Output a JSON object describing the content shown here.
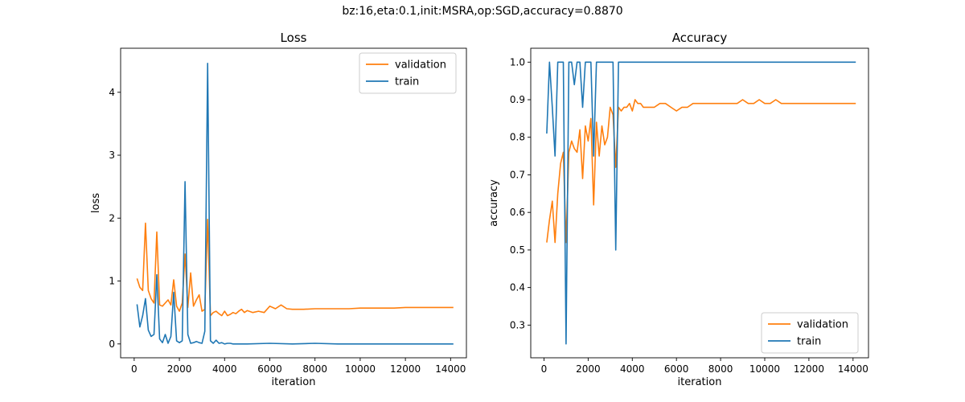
{
  "suptitle": "bz:16,eta:0.1,init:MSRA,op:SGD,accuracy=0.8870",
  "colors": {
    "validation": "#ff7f0e",
    "train": "#1f77b4"
  },
  "chart_data": [
    {
      "type": "line",
      "title": "Loss",
      "xlabel": "iteration",
      "ylabel": "loss",
      "xlim": [
        -600,
        14700
      ],
      "ylim": [
        -0.22,
        4.7
      ],
      "xticks": [
        0,
        2000,
        4000,
        6000,
        8000,
        10000,
        12000,
        14000
      ],
      "yticks": [
        0,
        1,
        2,
        3,
        4
      ],
      "legend": "top-right",
      "series": [
        {
          "name": "validation",
          "color": "#ff7f0e",
          "x": [
            125,
            250,
            375,
            500,
            625,
            750,
            875,
            1000,
            1125,
            1250,
            1375,
            1500,
            1625,
            1750,
            1875,
            2000,
            2125,
            2250,
            2375,
            2500,
            2625,
            2750,
            2875,
            3000,
            3125,
            3250,
            3375,
            3500,
            3625,
            3750,
            3875,
            4000,
            4125,
            4250,
            4375,
            4500,
            4625,
            4750,
            4875,
            5000,
            5250,
            5500,
            5750,
            6000,
            6250,
            6500,
            6750,
            7000,
            7500,
            8000,
            8500,
            9000,
            9500,
            10000,
            10500,
            11000,
            11500,
            12000,
            12500,
            13000,
            13500,
            14000,
            14125
          ],
          "values": [
            1.04,
            0.9,
            0.85,
            1.92,
            0.85,
            0.72,
            0.65,
            1.78,
            0.62,
            0.6,
            0.65,
            0.7,
            0.62,
            1.02,
            0.6,
            0.52,
            0.65,
            1.43,
            0.58,
            1.13,
            0.6,
            0.7,
            0.78,
            0.52,
            0.55,
            1.98,
            0.45,
            0.5,
            0.52,
            0.48,
            0.45,
            0.52,
            0.45,
            0.47,
            0.5,
            0.48,
            0.52,
            0.55,
            0.5,
            0.53,
            0.5,
            0.52,
            0.5,
            0.6,
            0.56,
            0.62,
            0.56,
            0.55,
            0.55,
            0.56,
            0.56,
            0.56,
            0.56,
            0.57,
            0.57,
            0.57,
            0.57,
            0.58,
            0.58,
            0.58,
            0.58,
            0.58,
            0.58
          ]
        },
        {
          "name": "train",
          "color": "#1f77b4",
          "x": [
            125,
            250,
            375,
            500,
            625,
            750,
            875,
            1000,
            1125,
            1250,
            1375,
            1500,
            1625,
            1750,
            1875,
            2000,
            2125,
            2250,
            2375,
            2500,
            2625,
            2750,
            2875,
            3000,
            3125,
            3250,
            3375,
            3500,
            3625,
            3750,
            3875,
            4000,
            4125,
            4250,
            4375,
            4500,
            5000,
            6000,
            7000,
            8000,
            9000,
            10000,
            11000,
            12000,
            13000,
            14000,
            14125
          ],
          "values": [
            0.63,
            0.27,
            0.45,
            0.72,
            0.22,
            0.12,
            0.15,
            1.1,
            0.08,
            0.02,
            0.15,
            0.01,
            0.12,
            0.82,
            0.05,
            0.02,
            0.05,
            2.58,
            0.15,
            0.01,
            0.02,
            0.04,
            0.02,
            0.01,
            0.2,
            4.46,
            0.05,
            0.01,
            0.06,
            0.01,
            0.02,
            0.0,
            0.01,
            0.01,
            0.0,
            0.0,
            0.0,
            0.01,
            0.0,
            0.01,
            0.0,
            0.0,
            0.0,
            0.0,
            0.0,
            0.0,
            0.0
          ]
        }
      ]
    },
    {
      "type": "line",
      "title": "Accuracy",
      "xlabel": "iteration",
      "ylabel": "accuracy",
      "xlim": [
        -600,
        14700
      ],
      "ylim": [
        0.213,
        1.037
      ],
      "xticks": [
        0,
        2000,
        4000,
        6000,
        8000,
        10000,
        12000,
        14000
      ],
      "yticks": [
        0.3,
        0.4,
        0.5,
        0.6,
        0.7,
        0.8,
        0.9,
        1.0
      ],
      "legend": "bottom-right",
      "series": [
        {
          "name": "validation",
          "color": "#ff7f0e",
          "x": [
            125,
            250,
            375,
            500,
            625,
            750,
            875,
            1000,
            1125,
            1250,
            1375,
            1500,
            1625,
            1750,
            1875,
            2000,
            2125,
            2250,
            2375,
            2500,
            2625,
            2750,
            2875,
            3000,
            3125,
            3250,
            3375,
            3500,
            3625,
            3750,
            3875,
            4000,
            4125,
            4250,
            4375,
            4500,
            4750,
            5000,
            5250,
            5500,
            5750,
            6000,
            6250,
            6500,
            6750,
            7000,
            7250,
            7500,
            7750,
            8000,
            8250,
            8500,
            8750,
            9000,
            9250,
            9500,
            9750,
            10000,
            10250,
            10500,
            10750,
            11000,
            11250,
            11500,
            11750,
            12000,
            12250,
            12500,
            12750,
            13000,
            13250,
            13500,
            13750,
            14000,
            14125
          ],
          "values": [
            0.52,
            0.58,
            0.63,
            0.52,
            0.65,
            0.73,
            0.76,
            0.52,
            0.76,
            0.79,
            0.77,
            0.76,
            0.82,
            0.69,
            0.83,
            0.79,
            0.85,
            0.62,
            0.84,
            0.75,
            0.83,
            0.78,
            0.8,
            0.88,
            0.86,
            0.72,
            0.88,
            0.87,
            0.88,
            0.88,
            0.89,
            0.87,
            0.9,
            0.89,
            0.89,
            0.88,
            0.88,
            0.88,
            0.89,
            0.89,
            0.88,
            0.87,
            0.88,
            0.88,
            0.89,
            0.89,
            0.89,
            0.89,
            0.89,
            0.89,
            0.89,
            0.89,
            0.89,
            0.9,
            0.89,
            0.89,
            0.9,
            0.89,
            0.89,
            0.9,
            0.89,
            0.89,
            0.89,
            0.89,
            0.89,
            0.89,
            0.89,
            0.89,
            0.89,
            0.89,
            0.89,
            0.89,
            0.89,
            0.89,
            0.89
          ]
        },
        {
          "name": "train",
          "color": "#1f77b4",
          "x": [
            125,
            250,
            375,
            500,
            625,
            750,
            875,
            1000,
            1125,
            1250,
            1375,
            1500,
            1625,
            1750,
            1875,
            2000,
            2125,
            2250,
            2375,
            2500,
            2625,
            2750,
            2875,
            3000,
            3125,
            3250,
            3375,
            3500,
            3625,
            3750,
            3875,
            4000,
            5000,
            6000,
            7000,
            8000,
            9000,
            10000,
            11000,
            12000,
            13000,
            14000,
            14125
          ],
          "values": [
            0.81,
            1.0,
            0.88,
            0.75,
            1.0,
            1.0,
            1.0,
            0.25,
            1.0,
            1.0,
            0.94,
            1.0,
            1.0,
            0.88,
            1.0,
            1.0,
            1.0,
            0.75,
            1.0,
            1.0,
            1.0,
            1.0,
            1.0,
            1.0,
            1.0,
            0.5,
            1.0,
            1.0,
            1.0,
            1.0,
            1.0,
            1.0,
            1.0,
            1.0,
            1.0,
            1.0,
            1.0,
            1.0,
            1.0,
            1.0,
            1.0,
            1.0,
            1.0
          ]
        }
      ]
    }
  ]
}
